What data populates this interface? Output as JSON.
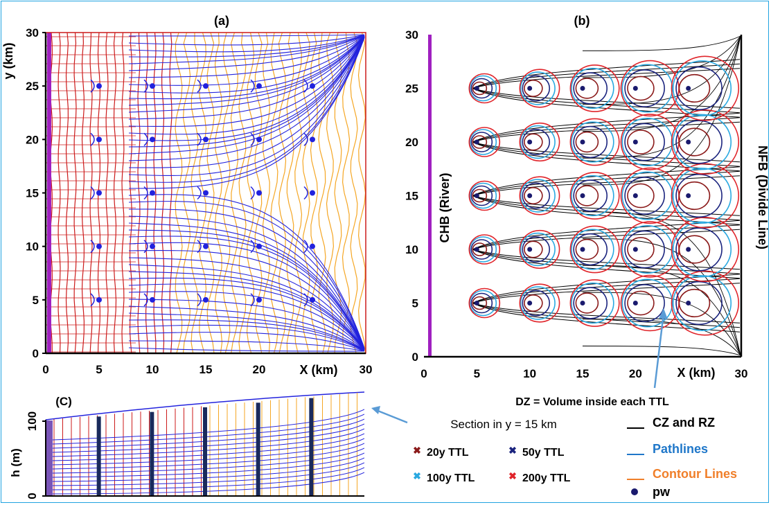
{
  "panel_a": {
    "label": "(a)",
    "xlabel": "X (km)",
    "ylabel": "y (km)",
    "x_ticks": [
      "0",
      "5",
      "10",
      "15",
      "20",
      "30"
    ],
    "y_ticks": [
      "0",
      "5",
      "10",
      "15",
      "20",
      "25",
      "30"
    ]
  },
  "panel_b": {
    "label": "(b)",
    "xlabel": "X (km)",
    "left_boundary_label": "CHB (River)",
    "right_boundary_label": "NFB (Divide Line)",
    "annotation": "DZ = Volume inside each TTL",
    "x_ticks": [
      "0",
      "5",
      "10",
      "15",
      "20",
      "30"
    ],
    "y_ticks": [
      "0",
      "5",
      "10",
      "15",
      "20",
      "25",
      "30"
    ]
  },
  "panel_c": {
    "label": "(C)",
    "ylabel": "h (m)",
    "y_ticks": [
      "0",
      "100"
    ],
    "caption": "Section in y = 15 km"
  },
  "legend": {
    "ttl_20": "20y TTL",
    "ttl_50": "50y TTL",
    "ttl_100": "100y TTL",
    "ttl_200": "200y TTL",
    "cz_rz": "CZ and RZ",
    "pathlines": "Pathlines",
    "contour": "Contour Lines",
    "pw": "pw"
  },
  "colors": {
    "frame": "#1fa3e0",
    "pathline": "#2222dd",
    "contour_red": "#cc1a1a",
    "contour_orange": "#f5a623",
    "river": "#a020c0",
    "ttl_20": "#8b1a1a",
    "ttl_50": "#1a237e",
    "ttl_100": "#29a8e0",
    "ttl_200": "#e0242a",
    "cz_rz": "#000000",
    "pathlines_text": "#1f77c9",
    "contour_text": "#f07f2a",
    "well": "#1a1a6e"
  },
  "chart_data": [
    {
      "type": "line",
      "panel": "a",
      "xlim": [
        0,
        30
      ],
      "ylim": [
        0,
        30
      ],
      "wells": {
        "x": [
          5,
          10,
          15,
          20,
          25
        ],
        "y": [
          5,
          10,
          15,
          20,
          25
        ]
      }
    },
    {
      "type": "line",
      "panel": "b",
      "xlim": [
        0,
        30
      ],
      "ylim": [
        0,
        30
      ],
      "wells": {
        "x": [
          5,
          10,
          15,
          20,
          25
        ],
        "y": [
          5,
          10,
          15,
          20,
          25
        ]
      }
    },
    {
      "type": "line",
      "panel": "c",
      "ylim": [
        0,
        100
      ],
      "wells_x": [
        5,
        10,
        15,
        20,
        25
      ]
    }
  ]
}
